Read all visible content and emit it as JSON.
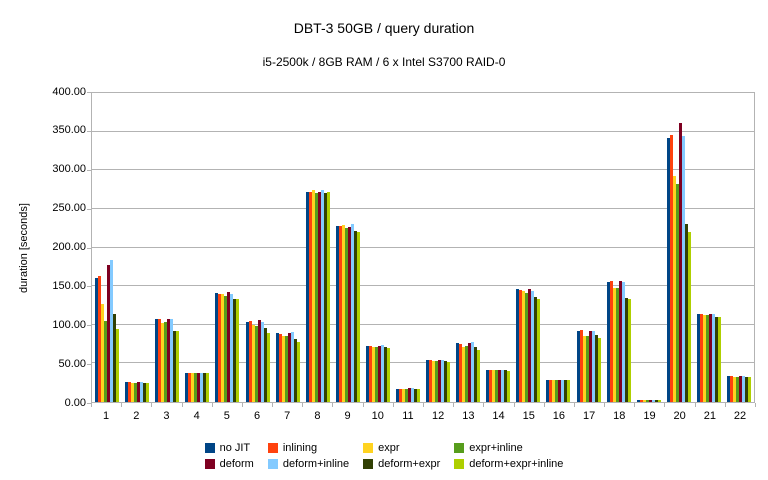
{
  "chart_data": {
    "type": "bar",
    "title": "DBT-3 50GB / query duration",
    "subtitle": "i5-2500k / 8GB RAM / 6 x Intel S3700 RAID-0",
    "xlabel": "",
    "ylabel": "duration [seconds]",
    "ylim": [
      0,
      400
    ],
    "ytick_step": 50,
    "ytick_decimals": 2,
    "grid": true,
    "legend_position": "bottom",
    "grid_color": "#b3b3b3",
    "text_color": "#000000",
    "background_color": "#ffffff",
    "categories": [
      "1",
      "2",
      "3",
      "4",
      "5",
      "6",
      "7",
      "8",
      "9",
      "10",
      "11",
      "12",
      "13",
      "14",
      "15",
      "16",
      "17",
      "18",
      "19",
      "20",
      "21",
      "22"
    ],
    "series": [
      {
        "name": "no JIT",
        "color": "#004586",
        "values": [
          161,
          26,
          108,
          37,
          141,
          103,
          89,
          272,
          228,
          73,
          17,
          54,
          76,
          42,
          146,
          29,
          92,
          156,
          3,
          342,
          114,
          34
        ]
      },
      {
        "name": "inlining",
        "color": "#ff420e",
        "values": [
          163,
          26,
          108,
          37,
          140,
          105,
          88,
          272,
          228,
          73,
          17,
          54,
          75,
          42,
          145,
          29,
          93,
          157,
          3,
          346,
          114,
          34
        ]
      },
      {
        "name": "expr",
        "color": "#ffd320",
        "values": [
          127,
          25,
          102,
          37,
          140,
          100,
          86,
          274,
          229,
          71,
          17,
          53,
          71,
          41,
          144,
          28,
          86,
          147,
          3,
          293,
          113,
          33
        ]
      },
      {
        "name": "expr+inline",
        "color": "#579d1c",
        "values": [
          105,
          25,
          104,
          37,
          137,
          98,
          86,
          271,
          225,
          71,
          17,
          53,
          73,
          41,
          141,
          28,
          85,
          147,
          3,
          282,
          113,
          33
        ]
      },
      {
        "name": "deform",
        "color": "#7e0021",
        "values": [
          177,
          26,
          107,
          38,
          142,
          106,
          89,
          272,
          227,
          73,
          18,
          54,
          76,
          42,
          146,
          29,
          92,
          157,
          3,
          361,
          114,
          34
        ]
      },
      {
        "name": "deform+inline",
        "color": "#83caff",
        "values": [
          184,
          26,
          108,
          38,
          140,
          103,
          90,
          274,
          230,
          74,
          18,
          54,
          78,
          42,
          144,
          29,
          92,
          156,
          3,
          344,
          114,
          34
        ]
      },
      {
        "name": "deform+expr",
        "color": "#314004",
        "values": [
          114,
          25,
          92,
          37,
          134,
          96,
          82,
          271,
          221,
          71,
          17,
          53,
          71,
          41,
          136,
          28,
          87,
          135,
          3,
          230,
          110,
          33
        ]
      },
      {
        "name": "deform+expr+inline",
        "color": "#aecf00",
        "values": [
          95,
          25,
          92,
          37,
          133,
          89,
          78,
          272,
          220,
          70,
          17,
          52,
          67,
          40,
          133,
          28,
          83,
          134,
          3,
          220,
          110,
          33
        ]
      }
    ]
  }
}
